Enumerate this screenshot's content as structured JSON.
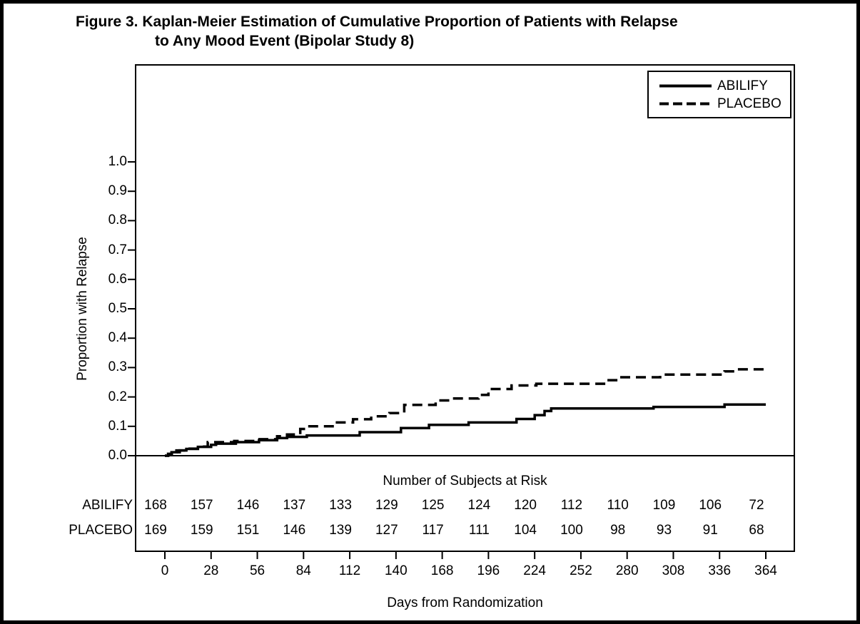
{
  "header": {
    "title_line1": "Figure 3. Kaplan-Meier Estimation of Cumulative Proportion of Patients with Relapse",
    "title_line2": "to Any Mood Event (Bipolar Study 8)"
  },
  "colors": {
    "foreground": "#000000",
    "background": "#ffffff"
  },
  "chart_data": {
    "type": "line",
    "subtype": "kaplan_meier_step",
    "title": "Figure 3. Kaplan-Meier Estimation of Cumulative Proportion of Patients with Relapse to Any Mood Event (Bipolar Study 8)",
    "xlabel": "Days from Randomization",
    "ylabel": "Proportion with Relapse",
    "xlim": [
      0,
      364
    ],
    "ylim": [
      0.0,
      1.0
    ],
    "x_ticks": [
      0,
      28,
      56,
      84,
      112,
      140,
      168,
      196,
      224,
      252,
      280,
      308,
      336,
      364
    ],
    "y_tick_labels": [
      "0.0",
      "0.1",
      "0.2",
      "0.3",
      "0.4",
      "0.5",
      "0.6",
      "0.7",
      "0.8",
      "0.9",
      "1.0"
    ],
    "grid": false,
    "legend": {
      "position": "top-right",
      "entries": [
        "ABILIFY",
        "PLACEBO"
      ]
    },
    "series": [
      {
        "name": "ABILIFY",
        "line_style": "solid",
        "color": "#000000",
        "steps": [
          [
            0,
            0.0
          ],
          [
            2,
            0.006
          ],
          [
            4,
            0.012
          ],
          [
            7,
            0.018
          ],
          [
            13,
            0.023
          ],
          [
            20,
            0.03
          ],
          [
            28,
            0.037
          ],
          [
            31,
            0.041
          ],
          [
            43,
            0.046
          ],
          [
            57,
            0.053
          ],
          [
            68,
            0.06
          ],
          [
            74,
            0.064
          ],
          [
            86,
            0.069
          ],
          [
            118,
            0.08
          ],
          [
            143,
            0.094
          ],
          [
            160,
            0.105
          ],
          [
            184,
            0.113
          ],
          [
            213,
            0.125
          ],
          [
            224,
            0.138
          ],
          [
            230,
            0.152
          ],
          [
            234,
            0.161
          ],
          [
            296,
            0.166
          ],
          [
            339,
            0.174
          ]
        ]
      },
      {
        "name": "PLACEBO",
        "line_style": "dashed",
        "color": "#000000",
        "steps": [
          [
            0,
            0.0
          ],
          [
            2,
            0.006
          ],
          [
            5,
            0.012
          ],
          [
            9,
            0.018
          ],
          [
            15,
            0.024
          ],
          [
            21,
            0.031
          ],
          [
            26,
            0.046
          ],
          [
            42,
            0.05
          ],
          [
            55,
            0.056
          ],
          [
            68,
            0.066
          ],
          [
            74,
            0.072
          ],
          [
            82,
            0.091
          ],
          [
            86,
            0.1
          ],
          [
            103,
            0.113
          ],
          [
            114,
            0.124
          ],
          [
            125,
            0.134
          ],
          [
            136,
            0.145
          ],
          [
            145,
            0.173
          ],
          [
            164,
            0.188
          ],
          [
            174,
            0.195
          ],
          [
            190,
            0.207
          ],
          [
            196,
            0.227
          ],
          [
            210,
            0.239
          ],
          [
            225,
            0.245
          ],
          [
            267,
            0.257
          ],
          [
            275,
            0.267
          ],
          [
            300,
            0.276
          ],
          [
            339,
            0.287
          ],
          [
            347,
            0.294
          ]
        ]
      }
    ],
    "at_risk": {
      "title": "Number of Subjects at Risk",
      "days": [
        0,
        28,
        56,
        84,
        112,
        140,
        168,
        196,
        224,
        252,
        280,
        308,
        336,
        364
      ],
      "rows": [
        {
          "name": "ABILIFY",
          "counts": [
            168,
            157,
            146,
            137,
            133,
            129,
            125,
            124,
            120,
            112,
            110,
            109,
            106,
            72
          ]
        },
        {
          "name": "PLACEBO",
          "counts": [
            169,
            159,
            151,
            146,
            139,
            127,
            117,
            111,
            104,
            100,
            98,
            93,
            91,
            68
          ]
        }
      ]
    }
  }
}
